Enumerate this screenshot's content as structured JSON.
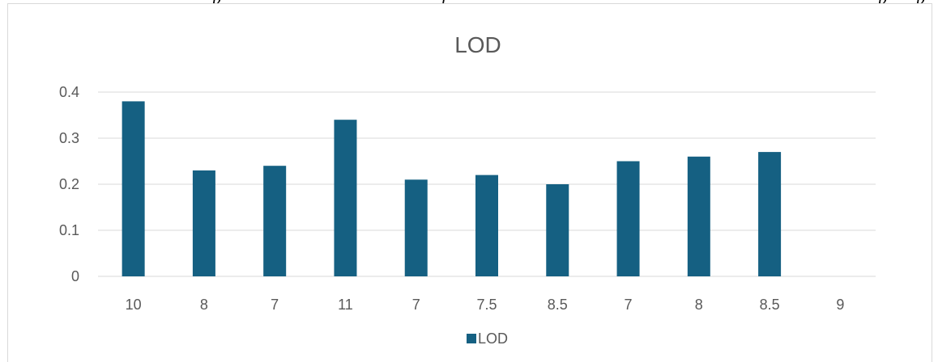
{
  "top_text_fragments": [
    "p",
    "f",
    "p",
    "p"
  ],
  "chart_data": {
    "type": "bar",
    "title": "LOD",
    "categories": [
      "10",
      "8",
      "7",
      "11",
      "7",
      "7.5",
      "8.5",
      "7",
      "8",
      "8.5",
      "9"
    ],
    "series": [
      {
        "name": "LOD",
        "values": [
          0.38,
          0.23,
          0.24,
          0.34,
          0.21,
          0.22,
          0.2,
          0.25,
          0.26,
          0.27,
          0
        ]
      }
    ],
    "xlabel": "",
    "ylabel": "",
    "ylim": [
      0,
      0.4
    ],
    "yticks": [
      "0",
      "0.1",
      "0.2",
      "0.3",
      "0.4"
    ],
    "grid": true,
    "legend_position": "bottom",
    "bar_color": "#156082",
    "grid_color": "#d9d9d9",
    "text_color": "#595959"
  }
}
